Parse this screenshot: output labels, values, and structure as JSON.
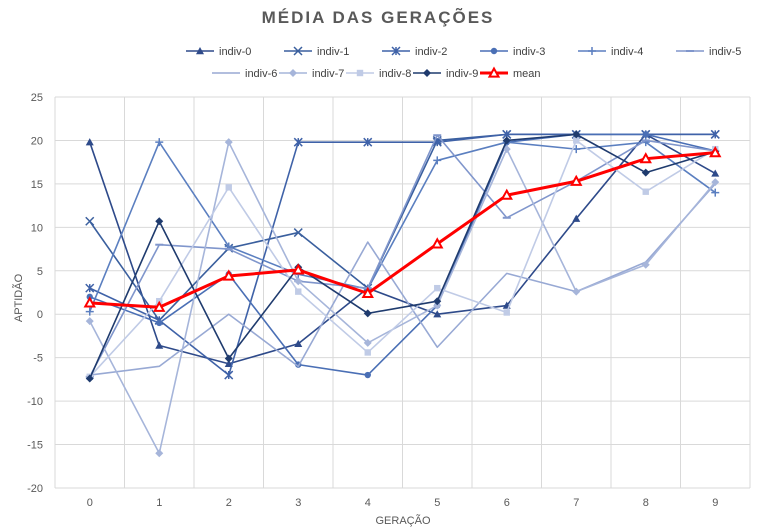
{
  "chart_data": {
    "type": "line",
    "title": "MÉDIA DAS GERAÇÕES",
    "xlabel": "GERAÇÃO",
    "ylabel": "APTIDÃO",
    "x": [
      0,
      1,
      2,
      3,
      4,
      5,
      6,
      7,
      8,
      9
    ],
    "ylim": [
      -20,
      25
    ],
    "yticks": [
      -20,
      -15,
      -10,
      -5,
      0,
      5,
      10,
      15,
      20,
      25
    ],
    "grid": true,
    "legend_position": "top",
    "series": [
      {
        "name": "indiv-0",
        "color": "#2e4a8a",
        "marker": "triangle",
        "values": [
          19.8,
          -3.6,
          -5.7,
          -3.4,
          3.0,
          0.0,
          1.0,
          11.0,
          20.7,
          16.2
        ]
      },
      {
        "name": "indiv-1",
        "color": "#3a5f9e",
        "marker": "x",
        "values": [
          10.7,
          -0.7,
          7.6,
          9.4,
          3.0,
          20.0,
          20.7,
          20.7,
          20.7,
          20.7
        ]
      },
      {
        "name": "indiv-2",
        "color": "#3f62a8",
        "marker": "star",
        "values": [
          3.0,
          -0.7,
          -7.0,
          19.8,
          19.8,
          19.8,
          20.7,
          20.7,
          20.7,
          20.7
        ]
      },
      {
        "name": "indiv-3",
        "color": "#4a6fb5",
        "marker": "circle",
        "values": [
          2.0,
          -1.0,
          4.6,
          -5.8,
          -7.0,
          1.0,
          19.8,
          20.7,
          20.7,
          18.8
        ]
      },
      {
        "name": "indiv-4",
        "color": "#5b7fc0",
        "marker": "plus",
        "values": [
          0.3,
          19.8,
          7.8,
          4.6,
          2.9,
          17.7,
          19.8,
          19.0,
          19.8,
          14.0
        ]
      },
      {
        "name": "indiv-5",
        "color": "#8096cc",
        "marker": "dash",
        "values": [
          -7.2,
          8.0,
          7.5,
          3.8,
          3.0,
          20.6,
          11.1,
          15.3,
          20.0,
          18.8
        ]
      },
      {
        "name": "indiv-6",
        "color": "#98a9d4",
        "marker": "none",
        "values": [
          -7.0,
          -6.0,
          0.0,
          -6.0,
          8.3,
          -3.8,
          4.7,
          2.6,
          6.0,
          15.0
        ]
      },
      {
        "name": "indiv-7",
        "color": "#a6b5da",
        "marker": "diamond",
        "values": [
          -0.8,
          -16.0,
          19.8,
          3.8,
          -3.3,
          1.0,
          19.0,
          2.6,
          5.7,
          15.2
        ]
      },
      {
        "name": "indiv-8",
        "color": "#c0cbe6",
        "marker": "square",
        "values": [
          -7.2,
          1.5,
          14.6,
          2.6,
          -4.4,
          3.0,
          0.2,
          20.0,
          14.1,
          19.0
        ]
      },
      {
        "name": "indiv-9",
        "color": "#1f3b6e",
        "marker": "diamond",
        "values": [
          -7.4,
          10.7,
          -5.1,
          5.4,
          0.1,
          1.5,
          20.0,
          20.7,
          16.3,
          18.7
        ]
      },
      {
        "name": "mean",
        "color": "#ff0000",
        "marker": "triangle-open",
        "values": [
          1.3,
          0.8,
          4.4,
          5.1,
          2.4,
          8.1,
          13.7,
          15.3,
          17.9,
          18.6
        ]
      }
    ]
  }
}
